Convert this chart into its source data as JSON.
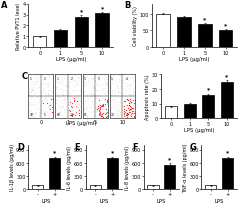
{
  "panel_A": {
    "label": "A",
    "categories": [
      "0",
      "1",
      "5",
      "10"
    ],
    "values": [
      1.0,
      1.6,
      2.8,
      3.1
    ],
    "errors": [
      0.08,
      0.1,
      0.12,
      0.1
    ],
    "colors": [
      "white",
      "black",
      "black",
      "black"
    ],
    "xlabel": "LPS (μg/ml)",
    "ylabel": "Relative PVT1 level",
    "ylim": [
      0,
      4
    ],
    "yticks": [
      0,
      1,
      2,
      3,
      4
    ],
    "sig": [
      false,
      false,
      true,
      true
    ]
  },
  "panel_B": {
    "label": "B",
    "categories": [
      "0",
      "1",
      "5",
      "10"
    ],
    "values": [
      100,
      90,
      68,
      50
    ],
    "errors": [
      2,
      3,
      4,
      3
    ],
    "colors": [
      "white",
      "black",
      "black",
      "black"
    ],
    "xlabel": "LPS (μg/ml)",
    "ylabel": "Cell viability (%)",
    "ylim": [
      0,
      130
    ],
    "yticks": [
      0,
      50,
      100
    ],
    "sig": [
      false,
      false,
      true,
      true
    ]
  },
  "panel_C_apoptosis": {
    "label": "",
    "categories": [
      "0",
      "1",
      "5",
      "10"
    ],
    "values": [
      8,
      10,
      16,
      25
    ],
    "errors": [
      0.5,
      0.6,
      0.8,
      1.0
    ],
    "colors": [
      "white",
      "black",
      "black",
      "black"
    ],
    "xlabel": "LPS (μg/ml)",
    "ylabel": "Apoptosis rate (%)",
    "ylim": [
      0,
      30
    ],
    "yticks": [
      0,
      10,
      20,
      30
    ],
    "sig": [
      false,
      false,
      true,
      true
    ]
  },
  "panel_D": {
    "label": "D",
    "categories": [
      "-",
      "+"
    ],
    "values": [
      80,
      700
    ],
    "errors": [
      8,
      40
    ],
    "colors": [
      "white",
      "black"
    ],
    "xlabel": "LPS",
    "ylabel": "IL-1β levels (pg/ml)",
    "ylim": [
      0,
      1000
    ],
    "yticks": [
      0,
      300,
      600,
      900
    ],
    "sig": [
      false,
      true
    ]
  },
  "panel_E": {
    "label": "E",
    "categories": [
      "-",
      "+"
    ],
    "values": [
      80,
      700
    ],
    "errors": [
      8,
      40
    ],
    "colors": [
      "white",
      "black"
    ],
    "xlabel": "LPS",
    "ylabel": "IL-6 levels (pg/ml)",
    "ylim": [
      0,
      1000
    ],
    "yticks": [
      0,
      300,
      600,
      900
    ],
    "sig": [
      false,
      true
    ]
  },
  "panel_F": {
    "label": "F",
    "categories": [
      "-",
      "+"
    ],
    "values": [
      80,
      550
    ],
    "errors": [
      8,
      35
    ],
    "colors": [
      "white",
      "black"
    ],
    "xlabel": "LPS",
    "ylabel": "IL-8 levels (pg/ml)",
    "ylim": [
      0,
      1000
    ],
    "yticks": [
      0,
      300,
      600,
      900
    ],
    "sig": [
      false,
      true
    ]
  },
  "panel_G": {
    "label": "G",
    "categories": [
      "-",
      "+"
    ],
    "values": [
      80,
      700
    ],
    "errors": [
      8,
      40
    ],
    "colors": [
      "white",
      "black"
    ],
    "xlabel": "LPS",
    "ylabel": "TNF-α levels (pg/ml)",
    "ylim": [
      0,
      1000
    ],
    "yticks": [
      0,
      300,
      600,
      900
    ],
    "sig": [
      false,
      true
    ]
  },
  "flow_cytometry": {
    "label": "C",
    "lps_labels": [
      "0",
      "1",
      "5",
      "10"
    ],
    "xlabel": "LPS (μg/ml)"
  },
  "bar_edge_color": "black",
  "bar_linewidth": 0.5,
  "tick_fontsize": 3.5,
  "label_fontsize": 3.8,
  "panel_label_fontsize": 6
}
